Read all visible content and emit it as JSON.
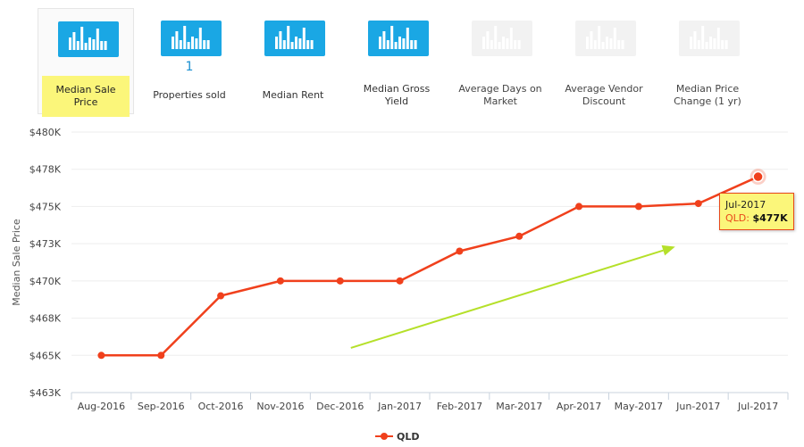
{
  "tabs": [
    {
      "label": "Median Sale Price",
      "count": "",
      "active": true,
      "enabled": true
    },
    {
      "label": "Properties sold",
      "count": "1",
      "active": false,
      "enabled": true
    },
    {
      "label": "Median Rent",
      "count": "",
      "active": false,
      "enabled": true
    },
    {
      "label": "Median Gross Yield",
      "count": "",
      "active": false,
      "enabled": true
    },
    {
      "label": "Average Days on Market",
      "count": "",
      "active": false,
      "enabled": false
    },
    {
      "label": "Average Vendor Discount",
      "count": "",
      "active": false,
      "enabled": false
    },
    {
      "label": "Median Price Change (1 yr)",
      "count": "",
      "active": false,
      "enabled": false
    }
  ],
  "colors": {
    "accent": "#1aa7e4",
    "series": "#f0401c",
    "highlight": "#fbf67a",
    "trend_arrow": "#b5e02a",
    "disabled_icon": "#f2f2f2"
  },
  "chart_data": {
    "type": "line",
    "categories": [
      "Aug-2016",
      "Sep-2016",
      "Oct-2016",
      "Nov-2016",
      "Dec-2016",
      "Jan-2017",
      "Feb-2017",
      "Mar-2017",
      "Apr-2017",
      "May-2017",
      "Jun-2017",
      "Jul-2017"
    ],
    "series": [
      {
        "name": "QLD",
        "values": [
          465000,
          465000,
          469000,
          470000,
          470000,
          470000,
          472000,
          473000,
          475000,
          475000,
          475200,
          477000
        ]
      }
    ],
    "yticks": [
      "$463K",
      "$465K",
      "$468K",
      "$470K",
      "$473K",
      "$475K",
      "$478K",
      "$480K"
    ],
    "ylim": [
      462500,
      480000
    ],
    "ylabel": "Median Sale Price",
    "xlabel": "",
    "grid": true,
    "legend": "bottom-center",
    "trend_arrow": {
      "from": {
        "category": "Dec-2016",
        "value": 465500
      },
      "to": {
        "category": "Jun-2017",
        "value": 472300
      }
    },
    "tooltip": {
      "category": "Jul-2017",
      "series": "QLD",
      "value_label": "$477K"
    }
  }
}
